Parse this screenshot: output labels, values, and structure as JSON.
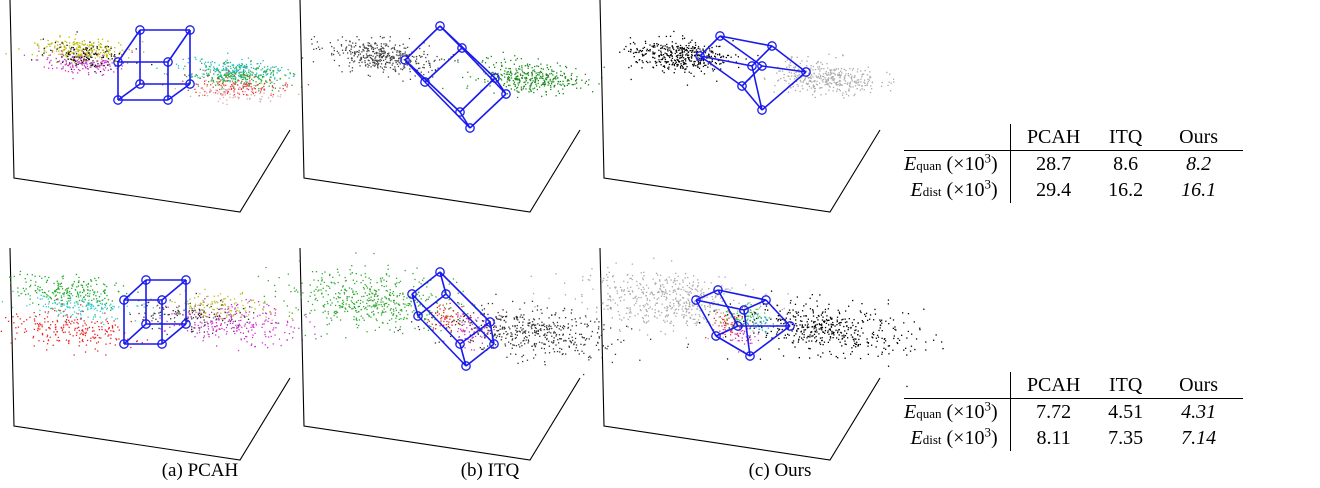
{
  "captions": {
    "pcah": "(a) PCAH",
    "itq": "(b) ITQ",
    "ours": "(c) Ours"
  },
  "tables": [
    {
      "headers": [
        "PCAH",
        "ITQ",
        "Ours"
      ],
      "rows": [
        {
          "sym": "E",
          "sub": "quan",
          "unit_pre": "(×10",
          "unit_exp": "3",
          "unit_post": ")",
          "values": [
            "28.7",
            "8.6",
            "8.2"
          ]
        },
        {
          "sym": "E",
          "sub": "dist",
          "unit_pre": "(×10",
          "unit_exp": "3",
          "unit_post": ")",
          "values": [
            "29.4",
            "16.2",
            "16.1"
          ]
        }
      ]
    },
    {
      "headers": [
        "PCAH",
        "ITQ",
        "Ours"
      ],
      "rows": [
        {
          "sym": "E",
          "sub": "quan",
          "unit_pre": "(×10",
          "unit_exp": "3",
          "unit_post": ")",
          "values": [
            "7.72",
            "4.51",
            "4.31"
          ]
        },
        {
          "sym": "E",
          "sub": "dist",
          "unit_pre": "(×10",
          "unit_exp": "3",
          "unit_post": ")",
          "values": [
            "8.11",
            "7.35",
            "7.14"
          ]
        }
      ]
    }
  ],
  "colors": {
    "cube": "#1a1aee",
    "axis": "#000000",
    "pcah_top": [
      "#b8b800",
      "#cc33cc",
      "#111111",
      "#22bbbb",
      "#33aa33",
      "#ee3333",
      "#ddaaaa"
    ],
    "itq_top": [
      "#444444",
      "#1a8a1a"
    ],
    "ours_top": [
      "#000000",
      "#aaaaaa"
    ],
    "pcah_bottom": [
      "#22aa22",
      "#33cccc",
      "#ee2222",
      "#cc33cc",
      "#bbbb22",
      "#333333"
    ],
    "itq_bottom": [
      "#33aa33",
      "#333333",
      "#cc33cc",
      "#ee2222"
    ],
    "ours_bottom": [
      "#aaaaaa",
      "#000000",
      "#ee3333",
      "#33cc33",
      "#cc33cc",
      "#22aacc"
    ]
  }
}
